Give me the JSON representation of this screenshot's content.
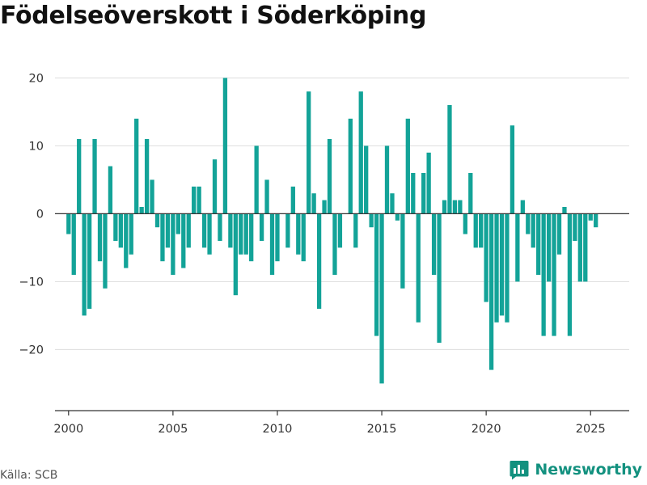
{
  "title": "Födelseöverskott i Söderköping",
  "source": "Källa: SCB",
  "brand": {
    "name": "Newsworthy",
    "icon": "bar-chart-logo-icon",
    "color": "#13917f"
  },
  "chart_data": {
    "type": "bar",
    "title": "Födelseöverskott i Söderköping",
    "bar_color": "#13a398",
    "ylim": [
      -29,
      21
    ],
    "yticks": [
      20,
      10,
      0,
      -10,
      -20
    ],
    "ytick_labels": [
      "20",
      "10",
      "0",
      "−10",
      "−20"
    ],
    "xlim": [
      1999.35,
      2026.85
    ],
    "xticks": [
      2000,
      2005,
      2010,
      2015,
      2020,
      2025
    ],
    "xtick_labels": [
      "2000",
      "2005",
      "2010",
      "2015",
      "2020",
      "2025"
    ],
    "grid": "horizontal",
    "frequency": "quarterly",
    "start": "2000 Q1",
    "values": [
      -3,
      -9,
      11,
      -15,
      -14,
      11,
      -7,
      -11,
      7,
      -4,
      -5,
      -8,
      -6,
      14,
      1,
      11,
      5,
      -2,
      -7,
      -5,
      -9,
      -3,
      -8,
      -5,
      4,
      4,
      -5,
      -6,
      8,
      -4,
      20,
      -5,
      -12,
      -6,
      -6,
      -7,
      10,
      -4,
      5,
      -9,
      -7,
      0,
      -5,
      4,
      -6,
      -7,
      18,
      3,
      -14,
      2,
      11,
      -9,
      -5,
      0,
      14,
      -5,
      18,
      10,
      -2,
      -18,
      -25,
      10,
      3,
      -1,
      -11,
      14,
      6,
      -16,
      6,
      9,
      -9,
      -19,
      2,
      16,
      2,
      2,
      -3,
      6,
      -5,
      -5,
      -13,
      -23,
      -16,
      -15,
      -16,
      13,
      -10,
      2,
      -3,
      -5,
      -9,
      -18,
      -10,
      -18,
      -6,
      1,
      -18,
      -4,
      -10,
      -10,
      -1,
      -2
    ]
  }
}
